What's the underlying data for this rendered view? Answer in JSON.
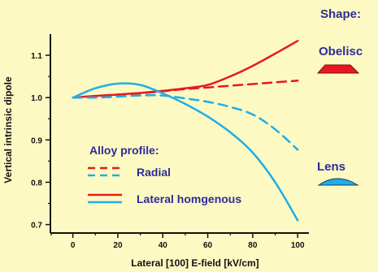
{
  "colors": {
    "background": "#fdf9c2",
    "red": "#e8191e",
    "cyan": "#20aee8",
    "text_blue": "#2c2c9c",
    "axis": "#111111"
  },
  "chart_data": {
    "type": "line",
    "xlabel": "Lateral [100] E-field [kV/cm]",
    "ylabel": "Vertical intrinsic dipole",
    "xlim": [
      -10,
      105
    ],
    "ylim": [
      0.68,
      1.15
    ],
    "x_ticks": [
      "0",
      "20",
      "40",
      "60",
      "80",
      "100"
    ],
    "y_ticks": [
      "0.7",
      "0.8",
      "0.9",
      "1.0",
      "1.1"
    ],
    "legend": {
      "title": "Alloy profile:",
      "entries": [
        {
          "label": "Radial",
          "style": "dashed"
        },
        {
          "label": "Lateral homgenous",
          "style": "solid"
        }
      ]
    },
    "series": [
      {
        "shape": "Obelisc",
        "profile": "Radial",
        "style": "dashed",
        "color": "#e8191e",
        "x": [
          0,
          10,
          20,
          30,
          40,
          50,
          60,
          70,
          80,
          90,
          100
        ],
        "y": [
          1.0,
          1.003,
          1.007,
          1.01,
          1.015,
          1.02,
          1.024,
          1.028,
          1.032,
          1.036,
          1.04
        ]
      },
      {
        "shape": "Obelisc",
        "profile": "Lateral homgenous",
        "style": "solid",
        "color": "#e8191e",
        "x": [
          0,
          10,
          20,
          30,
          40,
          50,
          60,
          70,
          80,
          90,
          100
        ],
        "y": [
          1.0,
          1.004,
          1.007,
          1.011,
          1.016,
          1.022,
          1.03,
          1.05,
          1.075,
          1.104,
          1.134
        ]
      },
      {
        "shape": "Lens",
        "profile": "Radial",
        "style": "dashed",
        "color": "#20aee8",
        "x": [
          0,
          10,
          20,
          30,
          40,
          50,
          60,
          70,
          80,
          90,
          100
        ],
        "y": [
          1.0,
          1.0,
          1.002,
          1.005,
          1.005,
          0.998,
          0.99,
          0.978,
          0.96,
          0.925,
          0.877
        ]
      },
      {
        "shape": "Lens",
        "profile": "Lateral homgenous",
        "style": "solid",
        "color": "#20aee8",
        "x": [
          0,
          10,
          20,
          30,
          40,
          50,
          60,
          70,
          80,
          90,
          100
        ],
        "y": [
          1.0,
          1.022,
          1.033,
          1.03,
          1.01,
          0.985,
          0.955,
          0.918,
          0.87,
          0.8,
          0.71
        ]
      }
    ]
  },
  "shapes": {
    "heading": "Shape:",
    "obelisc": {
      "label": "Obelisc",
      "color": "#e8191e"
    },
    "lens": {
      "label": "Lens",
      "color": "#20aee8"
    }
  }
}
